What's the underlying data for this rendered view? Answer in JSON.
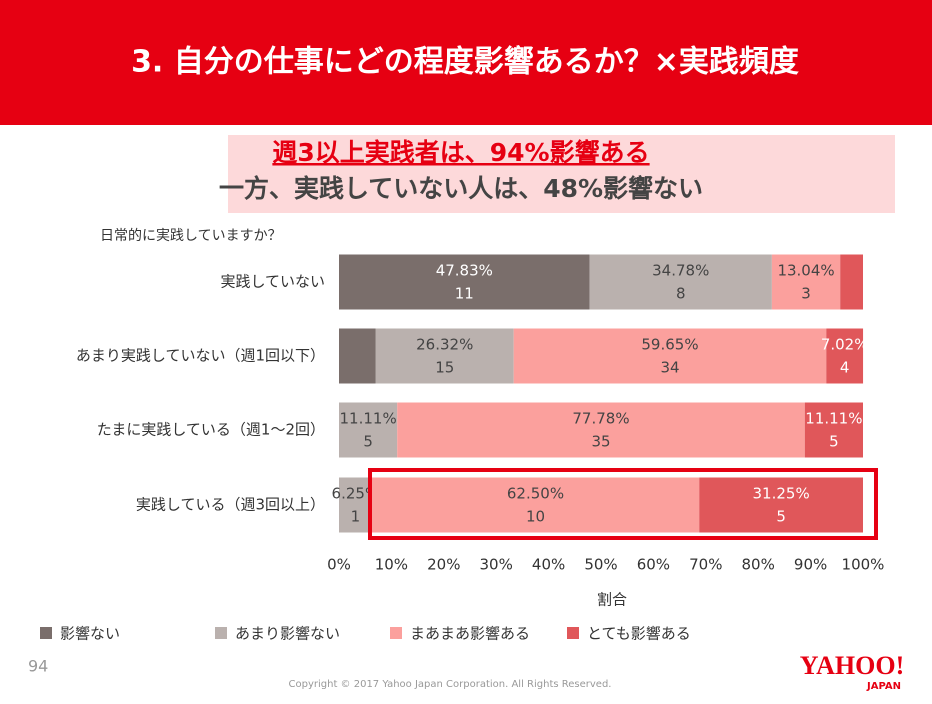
{
  "slide": {
    "title": "3. 自分の仕事にどの程度影響あるか？×実践頻度",
    "headline": "週3以上実践者は、94%影響ある",
    "subheadline": "一方、実践していない人は、48%影響ない",
    "page_number": "94",
    "copyright": "Copyright © 2017 Yahoo Japan Corporation. All Rights Reserved.",
    "logo": "YAHOO!",
    "logo_sub": "JAPAN"
  },
  "chart_data": {
    "type": "stacked_barh",
    "ylabel": "日常的に実践していますか？",
    "xlabel": "割合",
    "categories": [
      "実践していない",
      "あまり実践していない（週1回以下）",
      "たまに実践している（週1～2回）",
      "実践している（週3回以上）"
    ],
    "series": [
      {
        "name": "影響ない",
        "color": "#7a6e6b",
        "values": [
          47.83,
          7.02,
          0,
          0
        ],
        "value_labels": [
          "47.83%",
          null,
          null,
          null
        ],
        "counts": [
          11,
          null,
          null,
          null
        ]
      },
      {
        "name": "あまり影響ない",
        "color": "#bab1ae",
        "values": [
          34.78,
          26.32,
          11.11,
          6.25
        ],
        "value_labels": [
          "34.78%",
          "26.32%",
          "11.11%",
          "6.25%"
        ],
        "counts": [
          8,
          15,
          5,
          1
        ]
      },
      {
        "name": "まあまあ影響ある",
        "color": "#fba09d",
        "values": [
          13.04,
          59.65,
          77.78,
          62.5
        ],
        "value_labels": [
          "13.04%",
          "59.65%",
          "77.78%",
          "62.50%"
        ],
        "counts": [
          3,
          34,
          35,
          10
        ]
      },
      {
        "name": "とても影響ある",
        "color": "#e0575a",
        "values": [
          4.35,
          7.02,
          11.11,
          31.25
        ],
        "value_labels": [
          null,
          "7.02%",
          "11.11%",
          "31.25%"
        ],
        "counts": [
          null,
          4,
          5,
          5
        ]
      }
    ],
    "xlim": [
      0,
      100
    ],
    "xticks": [
      {
        "value": 0,
        "label": "0%"
      },
      {
        "value": 10,
        "label": "10%"
      },
      {
        "value": 20,
        "label": "20%"
      },
      {
        "value": 30,
        "label": "30%"
      },
      {
        "value": 40,
        "label": "40%"
      },
      {
        "value": 50,
        "label": "50%"
      },
      {
        "value": 60,
        "label": "60%"
      },
      {
        "value": 70,
        "label": "70%"
      },
      {
        "value": 80,
        "label": "80%"
      },
      {
        "value": 90,
        "label": "90%"
      },
      {
        "value": 100,
        "label": "100%"
      }
    ],
    "legend": "bottom-left"
  }
}
